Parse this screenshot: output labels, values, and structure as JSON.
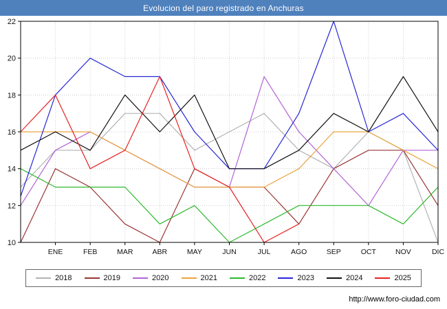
{
  "header": {
    "title": "Evolucion del paro registrado en Anchuras",
    "bg_color": "#4f81bd",
    "text_color": "#ffffff"
  },
  "footer": {
    "url": "http://www.foro-ciudad.com"
  },
  "chart_data": {
    "type": "line",
    "title": "Evolucion del paro registrado en Anchuras",
    "xlabel": "",
    "ylabel": "",
    "categories": [
      "ENE",
      "FEB",
      "MAR",
      "ABR",
      "MAY",
      "JUN",
      "JUL",
      "AGO",
      "SEP",
      "OCT",
      "NOV",
      "DIC"
    ],
    "ylim": [
      10,
      22
    ],
    "yticks": [
      10,
      12,
      14,
      16,
      18,
      20,
      22
    ],
    "grid": true,
    "grid_color": "#c4c4c4",
    "legend_position": "bottom",
    "series": [
      {
        "name": "2018",
        "color": "#b3b3b3",
        "start_value": 13,
        "values": [
          15,
          15,
          17,
          17,
          15,
          16,
          17,
          15,
          14,
          16,
          15,
          10
        ]
      },
      {
        "name": "2019",
        "color": "#993333",
        "start_value": 10,
        "values": [
          14,
          13,
          11,
          10,
          14,
          13,
          13,
          11,
          14,
          15,
          15,
          12
        ]
      },
      {
        "name": "2020",
        "color": "#b163d6",
        "start_value": 12,
        "values": [
          15,
          16,
          15,
          14,
          13,
          13,
          19,
          16,
          14,
          12,
          15,
          15
        ]
      },
      {
        "name": "2021",
        "color": "#e8a33c",
        "start_value": 16,
        "values": [
          16,
          16,
          15,
          14,
          13,
          13,
          13,
          14,
          16,
          16,
          15,
          14
        ]
      },
      {
        "name": "2022",
        "color": "#2db92d",
        "start_value": 14,
        "values": [
          13,
          13,
          13,
          11,
          12,
          10,
          11,
          12,
          12,
          12,
          11,
          13
        ]
      },
      {
        "name": "2023",
        "color": "#2626d6",
        "start_value": 12.5,
        "values": [
          18,
          20,
          19,
          19,
          16,
          14,
          14,
          17,
          22,
          16,
          17,
          15
        ]
      },
      {
        "name": "2024",
        "color": "#111111",
        "start_value": 15,
        "values": [
          16,
          15,
          18,
          16,
          18,
          14,
          14,
          15,
          17,
          16,
          19,
          16
        ]
      },
      {
        "name": "2025",
        "color": "#e62222",
        "start_value": 16,
        "values": [
          18,
          14,
          15,
          19,
          14,
          13,
          10,
          11
        ]
      }
    ]
  }
}
